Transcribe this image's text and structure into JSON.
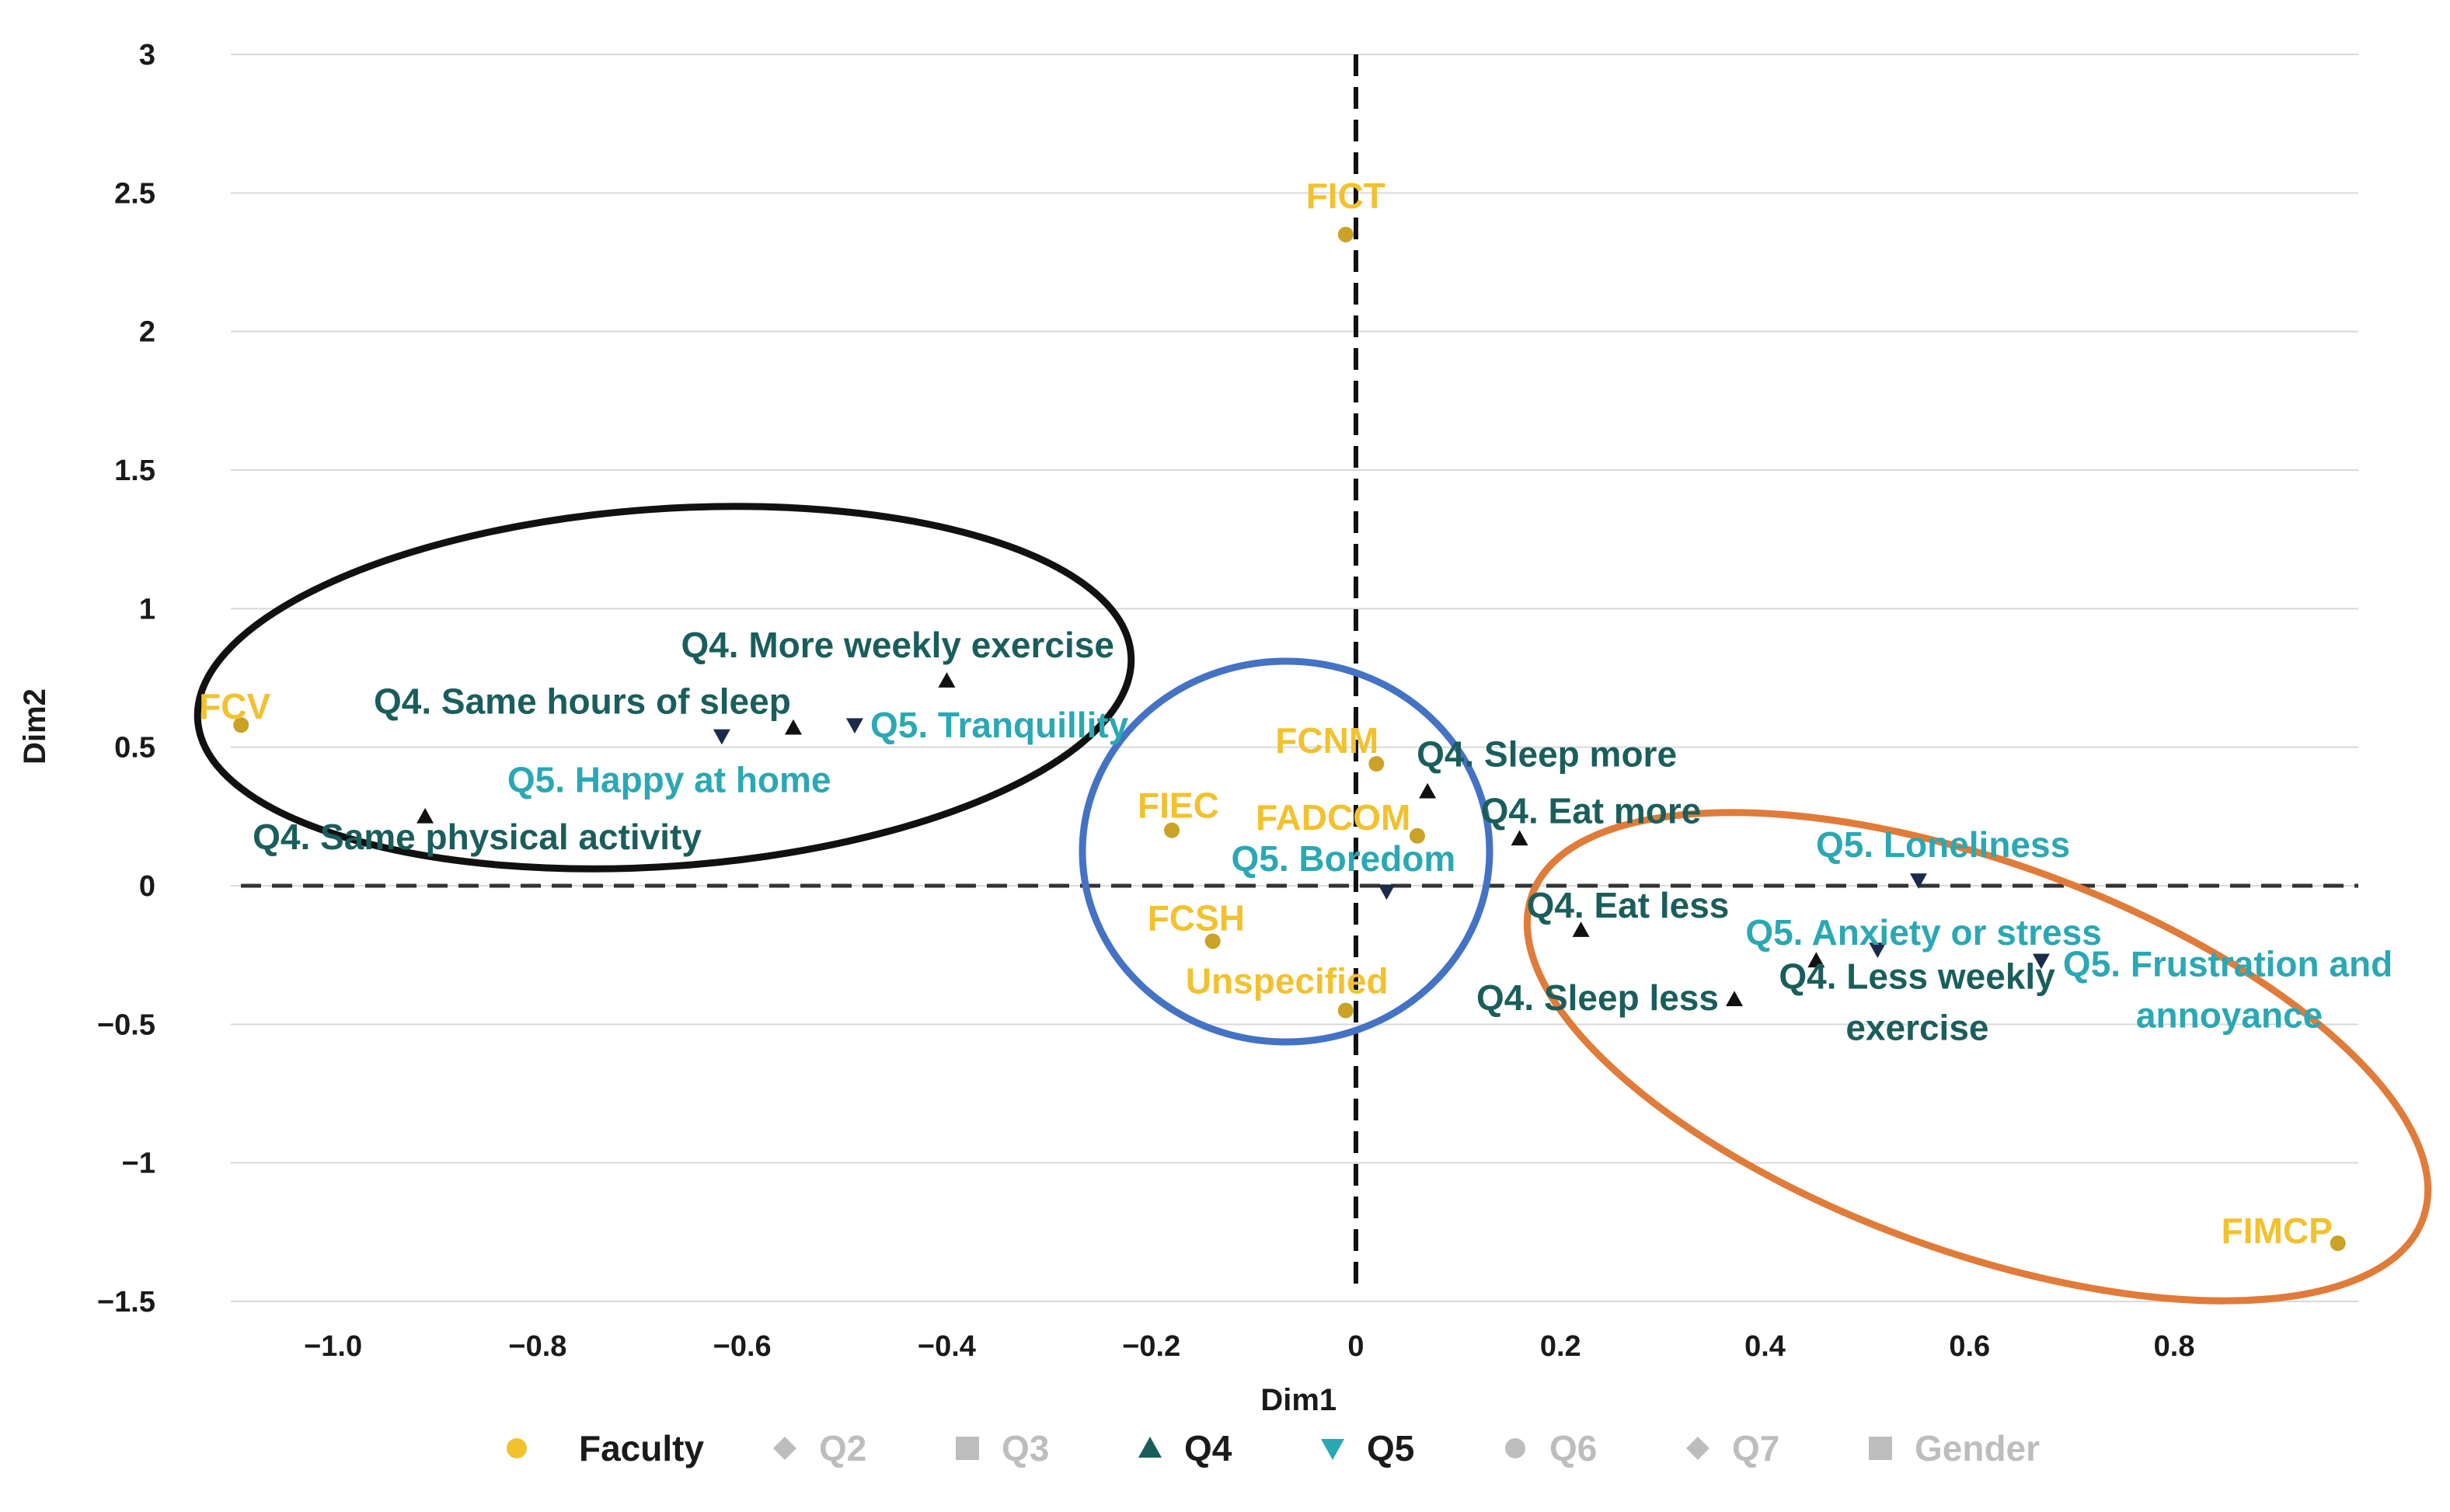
{
  "chart_data": {
    "type": "scatter",
    "title": "",
    "xlabel": "Dim1",
    "ylabel": "Dim2",
    "xlim": [
      -1.1,
      0.98
    ],
    "ylim": [
      -1.5,
      3.0
    ],
    "x_ticks": [
      -1.0,
      -0.8,
      -0.6,
      -0.4,
      -0.2,
      0,
      0.2,
      0.4,
      0.6,
      0.8
    ],
    "x_tick_labels": [
      "−1.0",
      "−0.8",
      "−0.6",
      "−0.4",
      "−0.2",
      "0",
      "0.2",
      "0.4",
      "0.6",
      "0.8"
    ],
    "y_ticks": [
      3,
      2.5,
      2,
      1.5,
      1,
      0.5,
      0,
      -0.5,
      -1,
      -1.5
    ],
    "y_tick_labels": [
      "3",
      "2.5",
      "2",
      "1.5",
      "1",
      "0.5",
      "0",
      "−0.5",
      "−1",
      "−1.5"
    ],
    "grid": "horizontal",
    "reference_lines": [
      "x = 0 (dashed)",
      "y = 0 (dashed)"
    ],
    "legend_position": "bottom",
    "legend": [
      {
        "name": "Faculty",
        "marker": "circle",
        "color": "#F2C12E",
        "active": true
      },
      {
        "name": "Q2",
        "marker": "diamond",
        "color": "#BDBDBD",
        "active": false
      },
      {
        "name": "Q3",
        "marker": "square",
        "color": "#BDBDBD",
        "active": false
      },
      {
        "name": "Q4",
        "marker": "triangle-up",
        "color": "#1A5E5B",
        "active": true
      },
      {
        "name": "Q5",
        "marker": "triangle-down",
        "color": "#2AA8B4",
        "active": true
      },
      {
        "name": "Q6",
        "marker": "circle",
        "color": "#BDBDBD",
        "active": false
      },
      {
        "name": "Q7",
        "marker": "diamond",
        "color": "#BDBDBD",
        "active": false
      },
      {
        "name": "Gender",
        "marker": "square",
        "color": "#BDBDBD",
        "active": false
      }
    ],
    "series": [
      {
        "name": "Faculty",
        "marker": "circle",
        "point_color": "#C9A227",
        "label_color": "#F2C12E",
        "points": [
          {
            "label": "FICT",
            "x": -0.01,
            "y": 2.35
          },
          {
            "label": "FCV",
            "x": -1.09,
            "y": 0.58
          },
          {
            "label": "FCNM",
            "x": 0.02,
            "y": 0.44
          },
          {
            "label": "FIEC",
            "x": -0.18,
            "y": 0.2
          },
          {
            "label": "FADCOM",
            "x": 0.06,
            "y": 0.18
          },
          {
            "label": "FCSH",
            "x": -0.14,
            "y": -0.2
          },
          {
            "label": "Unspecified",
            "x": -0.01,
            "y": -0.45
          },
          {
            "label": "FIMCP",
            "x": 0.96,
            "y": -1.29
          }
        ]
      },
      {
        "name": "Q4",
        "marker": "triangle-up",
        "point_color": "#111111",
        "label_color": "#1A5E5B",
        "points": [
          {
            "label": "Q4. More weekly exercise",
            "x": -0.4,
            "y": 0.74
          },
          {
            "label": "Q4. Same hours of sleep",
            "x": -0.55,
            "y": 0.57
          },
          {
            "label": "Q4. Same physical activity",
            "x": -0.91,
            "y": 0.25
          },
          {
            "label": "Q4. Sleep more",
            "x": 0.07,
            "y": 0.34
          },
          {
            "label": "Q4. Eat more",
            "x": 0.16,
            "y": 0.17
          },
          {
            "label": "Q4. Eat less",
            "x": 0.22,
            "y": -0.16
          },
          {
            "label": "Q4. Sleep less",
            "x": 0.37,
            "y": -0.41
          },
          {
            "label": "Q4. Less weekly exercise",
            "x": 0.45,
            "y": -0.27
          }
        ]
      },
      {
        "name": "Q5",
        "marker": "triangle-down",
        "point_color": "#1C2B4A",
        "label_color": "#2AA8B4",
        "points": [
          {
            "label": "Q5. Tranquillity",
            "x": -0.49,
            "y": 0.58
          },
          {
            "label": "Q5. Happy at home",
            "x": -0.62,
            "y": 0.54
          },
          {
            "label": "Q5. Boredom",
            "x": 0.03,
            "y": -0.02
          },
          {
            "label": "Q5. Loneliness",
            "x": 0.55,
            "y": 0.02
          },
          {
            "label": "Q5. Anxiety or stress",
            "x": 0.51,
            "y": -0.23
          },
          {
            "label": "Q5. Frustration and annoyance",
            "x": 0.67,
            "y": -0.27
          }
        ]
      }
    ],
    "cluster_outlines": [
      {
        "name": "cluster-left",
        "color": "#111111"
      },
      {
        "name": "cluster-center",
        "color": "#4472C4"
      },
      {
        "name": "cluster-right",
        "color": "#E07B39"
      }
    ]
  }
}
